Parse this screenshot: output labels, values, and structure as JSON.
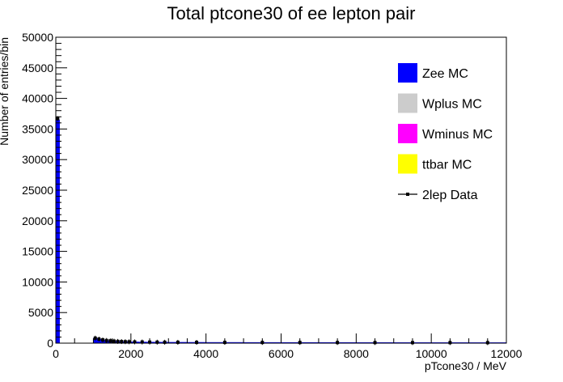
{
  "chart_data": {
    "type": "bar",
    "title": "Total ptcone30 of ee lepton pair",
    "xlabel": "pTcone30 / MeV",
    "ylabel": "Number of entries/bin",
    "xlim": [
      0,
      12000
    ],
    "ylim": [
      0,
      50000
    ],
    "xticks": [
      0,
      2000,
      4000,
      6000,
      8000,
      10000,
      12000
    ],
    "xtick_labels": [
      "0",
      "2000",
      "4000",
      "6000",
      "8000",
      "10000",
      "12000"
    ],
    "yticks": [
      0,
      5000,
      10000,
      15000,
      20000,
      25000,
      30000,
      35000,
      40000,
      45000,
      50000
    ],
    "ytick_labels": [
      "0",
      "5000",
      "10000",
      "15000",
      "20000",
      "25000",
      "30000",
      "35000",
      "40000",
      "45000",
      "50000"
    ],
    "legend_position": "top-right",
    "bin_width": 100,
    "series": [
      {
        "name": "Zee MC",
        "kind": "stacked-hist",
        "color": "#0000ff",
        "bins": [
          [
            0,
            100,
            36500
          ],
          [
            1000,
            1100,
            800
          ],
          [
            1100,
            1200,
            650
          ],
          [
            1200,
            1300,
            520
          ],
          [
            1300,
            1400,
            430
          ],
          [
            1400,
            1500,
            370
          ],
          [
            1500,
            1600,
            320
          ],
          [
            1600,
            1700,
            280
          ],
          [
            1700,
            1800,
            250
          ],
          [
            1800,
            1900,
            230
          ],
          [
            1900,
            2000,
            215
          ],
          [
            2000,
            2200,
            200
          ],
          [
            2200,
            2400,
            185
          ],
          [
            2400,
            2600,
            170
          ],
          [
            2600,
            2800,
            160
          ],
          [
            2800,
            3000,
            150
          ],
          [
            3000,
            3500,
            140
          ],
          [
            3500,
            4000,
            130
          ],
          [
            4000,
            5000,
            120
          ],
          [
            5000,
            6000,
            110
          ],
          [
            6000,
            7000,
            105
          ],
          [
            7000,
            8000,
            100
          ],
          [
            8000,
            9000,
            95
          ],
          [
            9000,
            10000,
            90
          ],
          [
            10000,
            11000,
            85
          ],
          [
            11000,
            12000,
            80
          ]
        ]
      },
      {
        "name": "Wplus MC",
        "kind": "stacked-hist",
        "color": "#cccccc",
        "bins": []
      },
      {
        "name": "Wminus MC",
        "kind": "stacked-hist",
        "color": "#ff00ff",
        "bins": []
      },
      {
        "name": "ttbar MC",
        "kind": "stacked-hist",
        "color": "#ffff00",
        "bins": []
      },
      {
        "name": "2lep Data",
        "kind": "points",
        "color": "#000000",
        "x": [
          50,
          1050,
          1150,
          1250,
          1350,
          1450,
          1550,
          1650,
          1750,
          1850,
          1950,
          2100,
          2300,
          2500,
          2700,
          2900,
          3250,
          3750,
          4500,
          5500,
          6500,
          7500,
          8500,
          9500,
          10500,
          11500
        ],
        "y": [
          36700,
          820,
          660,
          530,
          440,
          375,
          325,
          285,
          255,
          232,
          218,
          203,
          188,
          172,
          162,
          152,
          142,
          131,
          121,
          111,
          106,
          101,
          96,
          91,
          86,
          81
        ]
      }
    ]
  }
}
